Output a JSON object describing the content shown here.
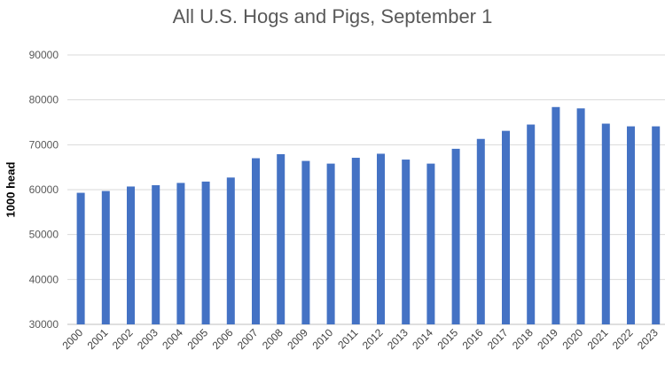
{
  "chart_data": {
    "type": "bar",
    "title": "All U.S. Hogs and Pigs, September 1",
    "xlabel": "",
    "ylabel": "1000 head",
    "ylim": [
      30000,
      90000
    ],
    "yticks": [
      "90000",
      "80000",
      "70000",
      "60000",
      "50000",
      "40000",
      "30000"
    ],
    "grid": true,
    "bar_color": "#4472C4",
    "categories": [
      "2000",
      "2001",
      "2002",
      "2003",
      "2004",
      "2005",
      "2006",
      "2007",
      "2008",
      "2009",
      "2010",
      "2011",
      "2012",
      "2013",
      "2014",
      "2015",
      "2016",
      "2017",
      "2018",
      "2019",
      "2020",
      "2021",
      "2022",
      "2023"
    ],
    "values": [
      59300,
      59700,
      60700,
      61000,
      61500,
      61800,
      62700,
      67000,
      67900,
      66400,
      65800,
      67100,
      68000,
      66700,
      65800,
      69100,
      71300,
      73100,
      74500,
      78400,
      78100,
      74700,
      74100,
      74100
    ]
  }
}
